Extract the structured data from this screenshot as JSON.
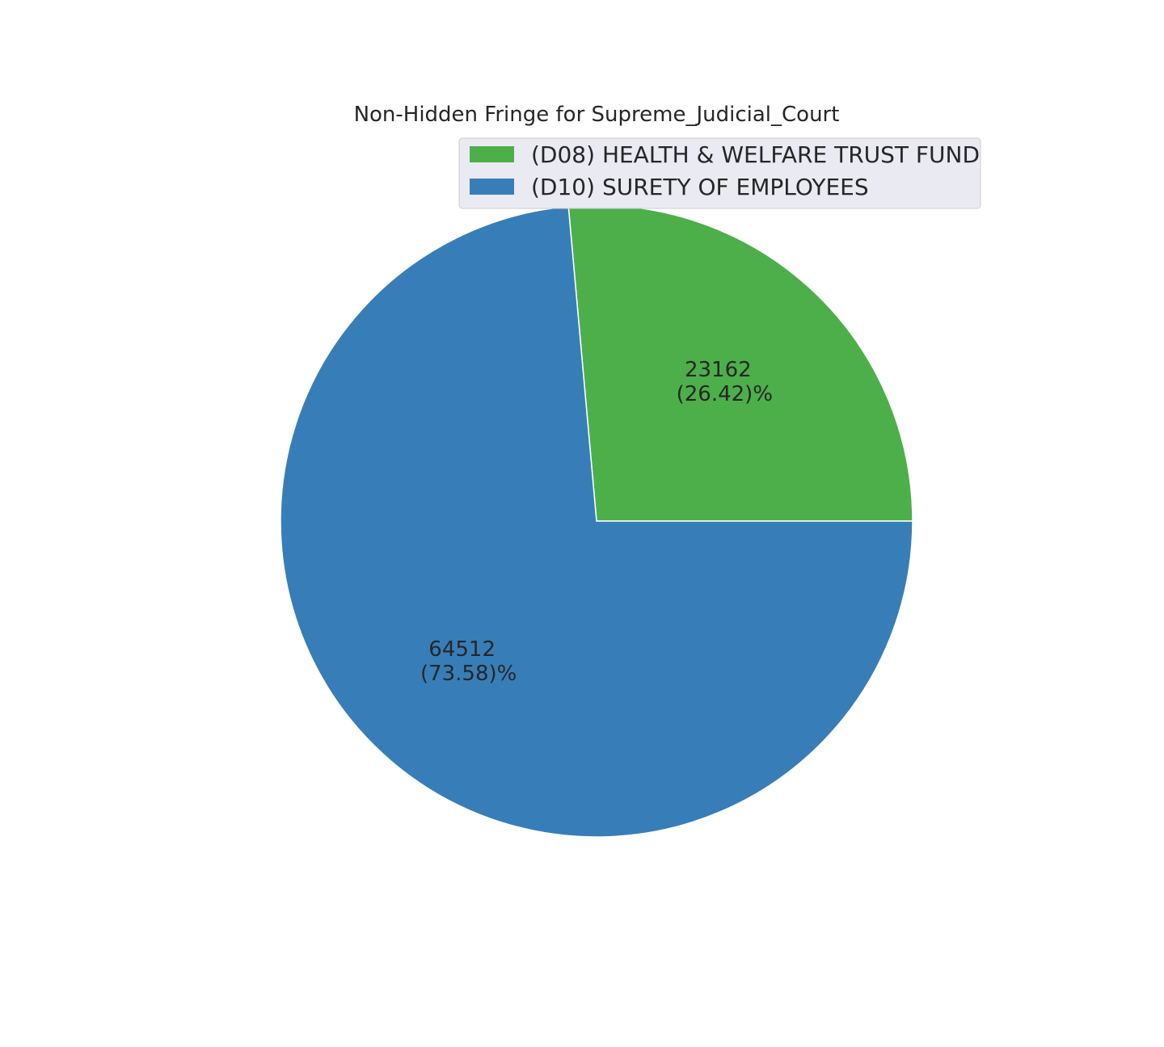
{
  "chart_data": {
    "type": "pie",
    "title": "Non-Hidden Fringe for Supreme_Judicial_Court",
    "labels": [
      "(D08) HEALTH & WELFARE TRUST FUND",
      "(D10) SURETY OF EMPLOYEES"
    ],
    "values": [
      23162,
      64512
    ],
    "value_labels": [
      "23162",
      "64512"
    ],
    "percent_labels": [
      "(26.42)%",
      "(73.58)%"
    ],
    "colors": [
      "#4daf4a",
      "#377eb8"
    ],
    "start_angle_deg": 0,
    "direction": "counterclockwise",
    "legend": {
      "position": "top-right",
      "background": "#eaeaf2",
      "border": "#cccccc"
    }
  }
}
